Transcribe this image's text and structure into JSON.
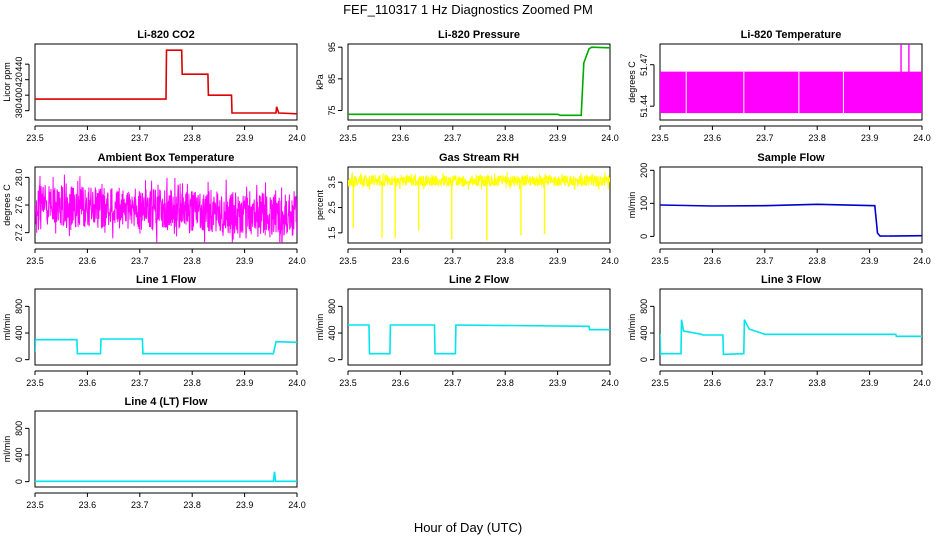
{
  "figure": {
    "title": "FEF_110317  1 Hz Diagnostics Zoomed PM",
    "xlabel": "Hour of Day (UTC)"
  },
  "chart_data": [
    {
      "type": "line",
      "title": "Li-820 CO2",
      "xlabel": "",
      "ylabel": "Licor ppm",
      "color": "#dd0000",
      "xlim": [
        23.5,
        24.0
      ],
      "ylim": [
        368,
        466
      ],
      "xticks": [
        "23.5",
        "23.6",
        "23.7",
        "23.8",
        "23.9",
        "24.0"
      ],
      "xtick_values": [
        23.5,
        23.6,
        23.7,
        23.8,
        23.9,
        24.0
      ],
      "yticks": [
        "380",
        "400",
        "420",
        "440"
      ],
      "ytick_values": [
        380,
        400,
        420,
        440
      ],
      "series": [
        {
          "x": [
            23.5,
            23.75,
            23.751,
            23.78,
            23.781,
            23.83,
            23.831,
            23.875,
            23.876,
            23.96,
            23.961,
            23.965,
            23.966,
            24.0
          ],
          "y": [
            395,
            395,
            458,
            458,
            427,
            427,
            400,
            400,
            377,
            377,
            385,
            377,
            377,
            376
          ]
        }
      ]
    },
    {
      "type": "line",
      "title": "Li-820 Pressure",
      "xlabel": "",
      "ylabel": "kPa",
      "color": "#00aa00",
      "xlim": [
        23.5,
        24.0
      ],
      "ylim": [
        72,
        96
      ],
      "xticks": [
        "23.5",
        "23.6",
        "23.7",
        "23.8",
        "23.9",
        "24.0"
      ],
      "xtick_values": [
        23.5,
        23.6,
        23.7,
        23.8,
        23.9,
        24.0
      ],
      "yticks": [
        "75",
        "85",
        "95"
      ],
      "ytick_values": [
        75,
        85,
        95
      ],
      "series": [
        {
          "x": [
            23.5,
            23.9,
            23.905,
            23.945,
            23.95,
            23.96,
            23.965,
            24.0
          ],
          "y": [
            73.8,
            73.8,
            73.5,
            73.5,
            90,
            94.5,
            95.0,
            94.8
          ]
        }
      ]
    },
    {
      "type": "area",
      "title": "Li-820 Temperature",
      "xlabel": "",
      "ylabel": "degrees C",
      "color": "#ff00ff",
      "xlim": [
        23.5,
        24.0
      ],
      "ylim": [
        51.43,
        51.485
      ],
      "xticks": [
        "23.5",
        "23.6",
        "23.7",
        "23.8",
        "23.9",
        "24.0"
      ],
      "xtick_values": [
        23.5,
        23.6,
        23.7,
        23.8,
        23.9,
        24.0
      ],
      "yticks": [
        "51.44",
        "51.47"
      ],
      "ytick_values": [
        51.44,
        51.47
      ],
      "band": {
        "x": [
          23.5,
          24.0
        ],
        "low": 51.435,
        "high": 51.465
      },
      "gaps": [
        23.55,
        23.66,
        23.765,
        23.85
      ],
      "spikes": [
        {
          "x": 23.96,
          "y": 51.485
        },
        {
          "x": 23.975,
          "y": 51.485
        }
      ]
    },
    {
      "type": "line",
      "title": "Ambient Box Temperature",
      "xlabel": "",
      "ylabel": "degrees C",
      "color": "#ff00ff",
      "xlim": [
        23.5,
        24.0
      ],
      "ylim": [
        27.05,
        28.15
      ],
      "xticks": [
        "23.5",
        "23.6",
        "23.7",
        "23.8",
        "23.9",
        "24.0"
      ],
      "xtick_values": [
        23.5,
        23.6,
        23.7,
        23.8,
        23.9,
        24.0
      ],
      "yticks": [
        "27.2",
        "27.6",
        "28.0"
      ],
      "ytick_values": [
        27.2,
        27.6,
        28.0
      ],
      "noise": {
        "x": [
          23.5,
          24.0
        ],
        "center_start": 27.6,
        "center_end": 27.45,
        "amplitude": 0.3,
        "n": 900
      }
    },
    {
      "type": "line",
      "title": "Gas Stream RH",
      "xlabel": "",
      "ylabel": "percent",
      "color": "#ffff00",
      "xlim": [
        23.5,
        24.0
      ],
      "ylim": [
        1.1,
        4.1
      ],
      "xticks": [
        "23.5",
        "23.6",
        "23.7",
        "23.8",
        "23.9",
        "24.0"
      ],
      "xtick_values": [
        23.5,
        23.6,
        23.7,
        23.8,
        23.9,
        24.0
      ],
      "yticks": [
        "1.5",
        "2.5",
        "3.5"
      ],
      "ytick_values": [
        1.5,
        2.5,
        3.5
      ],
      "noise": {
        "x": [
          23.5,
          24.0
        ],
        "center_start": 3.55,
        "center_end": 3.55,
        "amplitude": 0.22,
        "n": 900
      },
      "dips": [
        {
          "x": 23.51,
          "y": 1.7
        },
        {
          "x": 23.565,
          "y": 1.3
        },
        {
          "x": 23.59,
          "y": 1.3
        },
        {
          "x": 23.635,
          "y": 1.6
        },
        {
          "x": 23.698,
          "y": 1.25
        },
        {
          "x": 23.765,
          "y": 1.2
        },
        {
          "x": 23.83,
          "y": 1.4
        },
        {
          "x": 23.875,
          "y": 1.45
        }
      ]
    },
    {
      "type": "line",
      "title": "Sample Flow",
      "xlabel": "",
      "ylabel": "ml/min",
      "color": "#0000cc",
      "xlim": [
        23.5,
        24.0
      ],
      "ylim": [
        -20,
        210
      ],
      "xticks": [
        "23.5",
        "23.6",
        "23.7",
        "23.8",
        "23.9",
        "24.0"
      ],
      "xtick_values": [
        23.5,
        23.6,
        23.7,
        23.8,
        23.9,
        24.0
      ],
      "yticks": [
        "0",
        "100",
        "200"
      ],
      "ytick_values": [
        0,
        100,
        200
      ],
      "series": [
        {
          "x": [
            23.5,
            23.6,
            23.7,
            23.8,
            23.91,
            23.915,
            23.92,
            24.0
          ],
          "y": [
            95,
            92,
            93,
            97,
            93,
            10,
            1,
            2
          ]
        }
      ]
    },
    {
      "type": "line",
      "title": "Line 1 Flow",
      "xlabel": "",
      "ylabel": "ml/min",
      "color": "#00e5ee",
      "xlim": [
        23.5,
        24.0
      ],
      "ylim": [
        -80,
        1060
      ],
      "xticks": [
        "23.5",
        "23.6",
        "23.7",
        "23.8",
        "23.9",
        "24.0"
      ],
      "xtick_values": [
        23.5,
        23.6,
        23.7,
        23.8,
        23.9,
        24.0
      ],
      "yticks": [
        "0",
        "400",
        "800"
      ],
      "ytick_values": [
        0,
        400,
        800
      ],
      "series": [
        {
          "x": [
            23.5,
            23.501,
            23.58,
            23.581,
            23.625,
            23.626,
            23.705,
            23.706,
            23.955,
            23.96,
            24.0
          ],
          "y": [
            120,
            300,
            300,
            90,
            90,
            310,
            310,
            90,
            90,
            270,
            260
          ]
        }
      ]
    },
    {
      "type": "line",
      "title": "Line 2 Flow",
      "xlabel": "",
      "ylabel": "ml/min",
      "color": "#00e5ee",
      "xlim": [
        23.5,
        24.0
      ],
      "ylim": [
        -80,
        1060
      ],
      "xticks": [
        "23.5",
        "23.6",
        "23.7",
        "23.8",
        "23.9",
        "24.0"
      ],
      "xtick_values": [
        23.5,
        23.6,
        23.7,
        23.8,
        23.9,
        24.0
      ],
      "yticks": [
        "0",
        "400",
        "800"
      ],
      "ytick_values": [
        0,
        400,
        800
      ],
      "series": [
        {
          "x": [
            23.5,
            23.54,
            23.541,
            23.58,
            23.581,
            23.665,
            23.666,
            23.705,
            23.706,
            23.96,
            23.961,
            24.0
          ],
          "y": [
            520,
            520,
            90,
            90,
            520,
            520,
            90,
            90,
            520,
            500,
            450,
            450
          ]
        }
      ]
    },
    {
      "type": "line",
      "title": "Line 3 Flow",
      "xlabel": "",
      "ylabel": "ml/min",
      "color": "#00e5ee",
      "xlim": [
        23.5,
        24.0
      ],
      "ylim": [
        -80,
        1060
      ],
      "xticks": [
        "23.5",
        "23.6",
        "23.7",
        "23.8",
        "23.9",
        "24.0"
      ],
      "xtick_values": [
        23.5,
        23.6,
        23.7,
        23.8,
        23.9,
        24.0
      ],
      "yticks": [
        "0",
        "400",
        "800"
      ],
      "ytick_values": [
        0,
        400,
        800
      ],
      "series": [
        {
          "x": [
            23.5,
            23.501,
            23.503,
            23.54,
            23.541,
            23.545,
            23.58,
            23.581,
            23.62,
            23.621,
            23.66,
            23.661,
            23.67,
            23.7,
            23.95,
            23.951,
            24.0
          ],
          "y": [
            390,
            80,
            90,
            90,
            600,
            430,
            380,
            370,
            370,
            80,
            90,
            600,
            460,
            380,
            380,
            350,
            350
          ]
        }
      ]
    },
    {
      "type": "line",
      "title": "Line 4 (LT) Flow",
      "xlabel": "",
      "ylabel": "ml/min",
      "color": "#00e5ee",
      "xlim": [
        23.5,
        24.0
      ],
      "ylim": [
        -80,
        1060
      ],
      "xticks": [
        "23.5",
        "23.6",
        "23.7",
        "23.8",
        "23.9",
        "24.0"
      ],
      "xtick_values": [
        23.5,
        23.6,
        23.7,
        23.8,
        23.9,
        24.0
      ],
      "yticks": [
        "0",
        "400",
        "800"
      ],
      "ytick_values": [
        0,
        400,
        800
      ],
      "series": [
        {
          "x": [
            23.5,
            23.955,
            23.957,
            23.959,
            23.961,
            24.0
          ],
          "y": [
            5,
            5,
            150,
            5,
            5,
            5
          ]
        }
      ]
    }
  ]
}
